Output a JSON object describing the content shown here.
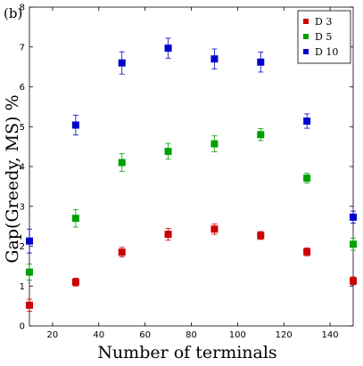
{
  "chart_data": {
    "type": "scatter",
    "panel_label": "(b)",
    "xlabel": "Number of terminals",
    "ylabel": "Gap(Greedy, MS) %",
    "xlim": [
      10,
      150
    ],
    "ylim": [
      0,
      8
    ],
    "xticks": [
      20,
      40,
      60,
      80,
      100,
      120,
      140
    ],
    "yticks": [
      0,
      1,
      2,
      3,
      4,
      5,
      6,
      7,
      8
    ],
    "legend_position": "top-right",
    "error_bars": true,
    "x": [
      10,
      30,
      50,
      70,
      90,
      110,
      130,
      150
    ],
    "series": [
      {
        "name": "D 3",
        "color": "#cc0000",
        "values": [
          0.52,
          1.1,
          1.85,
          2.3,
          2.43,
          2.27,
          1.86,
          1.13
        ],
        "errors": [
          0.15,
          0.1,
          0.12,
          0.15,
          0.13,
          0.1,
          0.1,
          0.1
        ]
      },
      {
        "name": "D 5",
        "color": "#00a000",
        "values": [
          1.35,
          2.7,
          4.1,
          4.38,
          4.57,
          4.8,
          3.71,
          2.05
        ],
        "errors": [
          0.2,
          0.22,
          0.22,
          0.2,
          0.2,
          0.15,
          0.12,
          0.15
        ]
      },
      {
        "name": "D 10",
        "color": "#0000cc",
        "values": [
          2.13,
          5.04,
          6.6,
          6.97,
          6.7,
          6.62,
          5.14,
          2.73
        ],
        "errors": [
          0.3,
          0.25,
          0.28,
          0.25,
          0.25,
          0.25,
          0.18,
          0.15
        ]
      }
    ]
  }
}
